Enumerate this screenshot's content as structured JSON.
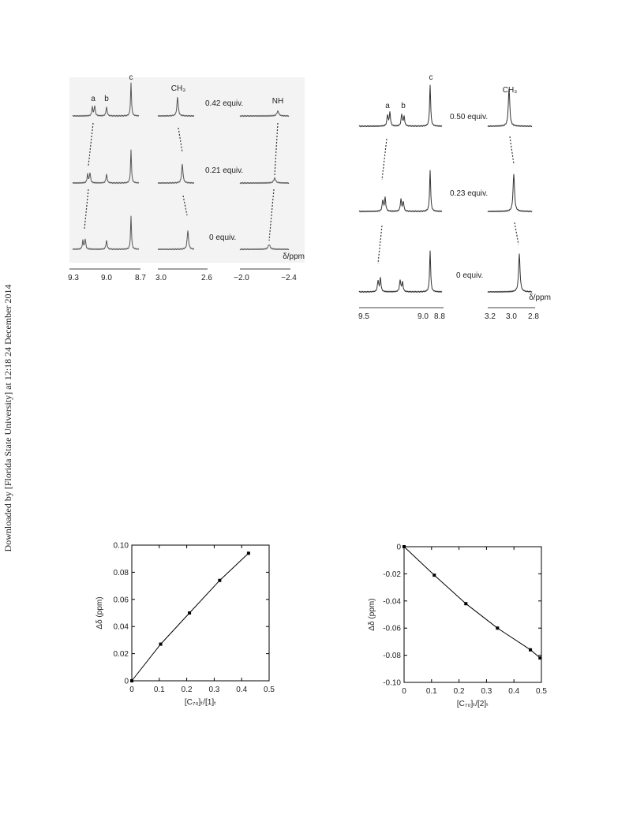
{
  "watermark": "Downloaded by [Florida State University] at 12:18 24 December 2014",
  "spectra": [
    {
      "peaks": [
        "a",
        "b",
        "c"
      ],
      "methyl": "CH₃",
      "amine": "NH",
      "equivalents": [
        "0.42 equiv.",
        "0.21 equiv.",
        "0 equiv."
      ],
      "axis_label": "δ/ppm",
      "ticks": [
        "9.3",
        "9.0",
        "8.7",
        "3.0",
        "2.6",
        "−2.0",
        "−2.4"
      ]
    },
    {
      "peaks": [
        "a",
        "b",
        "c"
      ],
      "methyl": "CH₃",
      "equivalents": [
        "0.50 equiv.",
        "0.23 equiv.",
        "0 equiv."
      ],
      "axis_label": "δ/ppm",
      "ticks": [
        "9.5",
        "9.0",
        "8.8",
        "3.2",
        "3.0",
        "2.8"
      ]
    }
  ],
  "chart_data": [
    {
      "type": "scatter",
      "ylabel": "Δδ (ppm)",
      "xlabel": "[C₇₀]ₜ/[1]ₜ",
      "x": [
        0,
        0.105,
        0.21,
        0.32,
        0.425
      ],
      "values": [
        0,
        0.027,
        0.05,
        0.074,
        0.094
      ],
      "color": "#000000",
      "xlim": [
        0,
        0.5
      ],
      "xticks": [
        0,
        0.1,
        0.2,
        0.3,
        0.4,
        0.5
      ],
      "ylim": [
        0,
        0.1
      ],
      "yticks": [
        0,
        0.02,
        0.04,
        0.06,
        0.08,
        {
          "value": 0.1,
          "label": "0.10"
        }
      ]
    },
    {
      "type": "scatter",
      "ylabel": "Δδ (ppm)",
      "xlabel": "[C₇₀]ₜ/[2]ₜ",
      "x": [
        0,
        0.11,
        0.225,
        0.34,
        0.46,
        0.495
      ],
      "values": [
        0,
        -0.021,
        -0.042,
        -0.06,
        -0.076,
        -0.082
      ],
      "color": "#000000",
      "xlim": [
        0,
        0.5
      ],
      "xticks": [
        0,
        0.1,
        0.2,
        0.3,
        0.4,
        0.5
      ],
      "ylim": [
        -0.1,
        0
      ],
      "yticks": [
        {
          "value": -0.1,
          "label": "-0.10"
        },
        -0.08,
        -0.06,
        -0.04,
        -0.02,
        0
      ]
    }
  ]
}
